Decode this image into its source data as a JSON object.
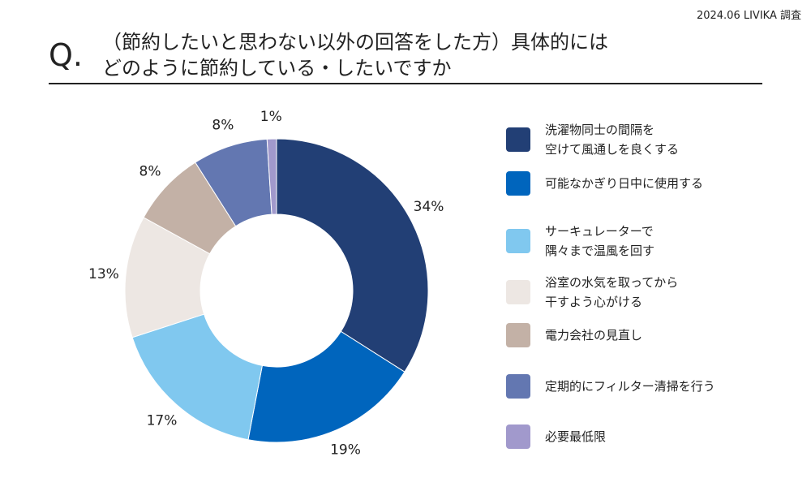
{
  "source": "2024.06 LIVIKA 調査",
  "question_mark": "Q.",
  "title_lines": [
    "（節約したいと思わない以外の回答をした方）具体的には",
    "どのように節約している・したいですか"
  ],
  "chart_data": {
    "type": "pie",
    "donut": true,
    "value_unit": "%",
    "categories": [
      "洗濯物同士の間隔を空けて風通しを良くする",
      "可能なかぎり日中に使用する",
      "サーキュレーターで隅々まで温風を回す",
      "浴室の水気を取ってから干すよう心がける",
      "電力会社の見直し",
      "定期的にフィルター清掃を行う",
      "必要最低限"
    ],
    "values": [
      34,
      19,
      17,
      13,
      8,
      8,
      1
    ],
    "value_labels": [
      "34%",
      "19%",
      "17%",
      "13%",
      "8%",
      "8%",
      "1%"
    ],
    "colors": [
      "#223f75",
      "#0065bd",
      "#80c8ef",
      "#ede7e3",
      "#c3b1a6",
      "#6377b1",
      "#a199cc"
    ],
    "legend_placement": "right",
    "legend": [
      {
        "lines": [
          "洗濯物同士の間隔を",
          "空けて風通しを良くする"
        ],
        "color": "#223f75"
      },
      {
        "lines": [
          "可能なかぎり日中に使用する"
        ],
        "color": "#0065bd"
      },
      {
        "lines": [
          "サーキュレーターで",
          "隅々まで温風を回す"
        ],
        "color": "#80c8ef"
      },
      {
        "lines": [
          "浴室の水気を取ってから",
          "干すよう心がける"
        ],
        "color": "#ede7e3"
      },
      {
        "lines": [
          "電力会社の見直し"
        ],
        "color": "#c3b1a6"
      },
      {
        "lines": [
          "定期的にフィルター清掃を行う"
        ],
        "color": "#6377b1"
      },
      {
        "lines": [
          "必要最低限"
        ],
        "color": "#a199cc"
      }
    ]
  }
}
